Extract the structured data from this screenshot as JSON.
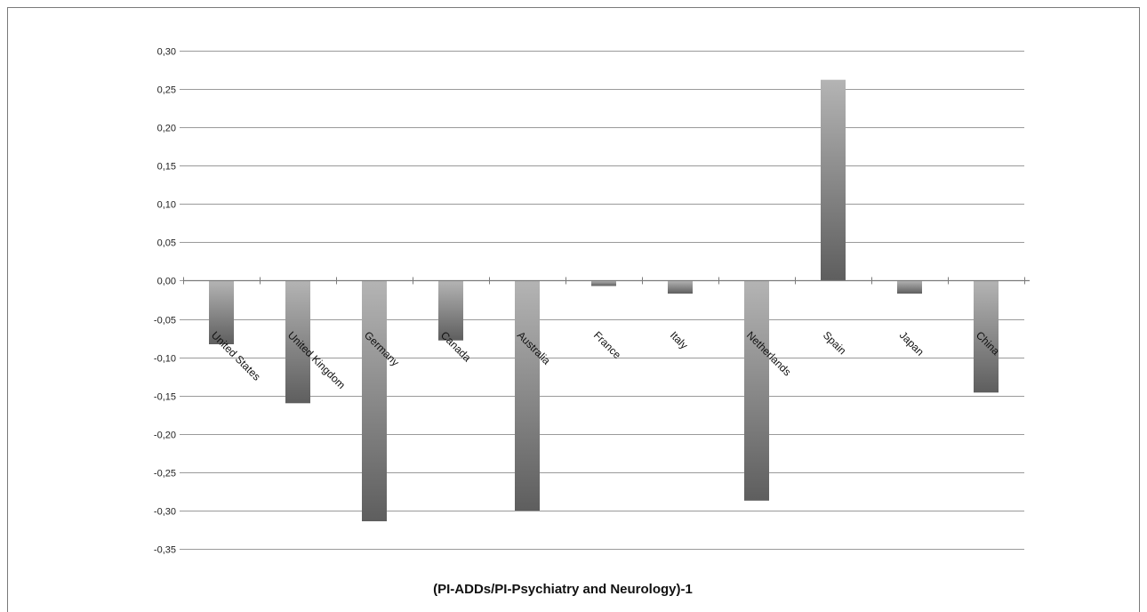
{
  "chart_data": {
    "type": "bar",
    "title": "",
    "xlabel": "(PI-ADDs/PI-Psychiatry and Neurology)-1",
    "ylabel": "",
    "ylim": [
      -0.35,
      0.3
    ],
    "ytick_step": 0.05,
    "ytick_labels": [
      "0,30",
      "0,25",
      "0,20",
      "0,15",
      "0,10",
      "0,05",
      "0,00",
      "-0,05",
      "-0,10",
      "-0,15",
      "-0,20",
      "-0,25",
      "-0,30",
      "-0,35"
    ],
    "grid": true,
    "legend": "none",
    "categories": [
      "United States",
      "United Kingdom",
      "Germany",
      "Canada",
      "Australia",
      "France",
      "Italy",
      "Netherlands",
      "Spain",
      "Japan",
      "China"
    ],
    "values": [
      -0.083,
      -0.16,
      -0.314,
      -0.078,
      -0.3,
      -0.007,
      -0.017,
      -0.287,
      0.262,
      -0.017,
      -0.146
    ],
    "colors": {
      "bar_light": "#b4b4b4",
      "bar_dark": "#5e5e5e",
      "grid": "#9a9a9a"
    }
  }
}
